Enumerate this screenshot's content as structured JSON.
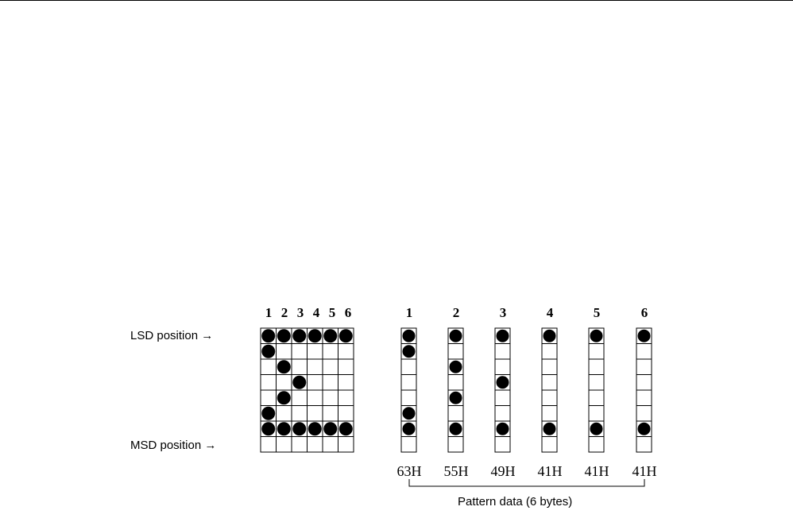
{
  "labels": {
    "lsd": "LSD position",
    "msd": "MSD position",
    "pattern": "Pattern data (6 bytes)"
  },
  "columns": [
    "1",
    "2",
    "3",
    "4",
    "5",
    "6"
  ],
  "bytes": [
    "63H",
    "55H",
    "49H",
    "41H",
    "41H",
    "41H"
  ],
  "matrix_rows": 8,
  "bit_columns": [
    [
      1,
      1,
      0,
      0,
      0,
      1,
      1,
      0
    ],
    [
      1,
      0,
      1,
      0,
      1,
      0,
      1,
      0
    ],
    [
      1,
      0,
      0,
      1,
      0,
      0,
      1,
      0
    ],
    [
      1,
      0,
      0,
      0,
      0,
      0,
      1,
      0
    ],
    [
      1,
      0,
      0,
      0,
      0,
      0,
      1,
      0
    ],
    [
      1,
      0,
      0,
      0,
      0,
      0,
      1,
      0
    ]
  ]
}
